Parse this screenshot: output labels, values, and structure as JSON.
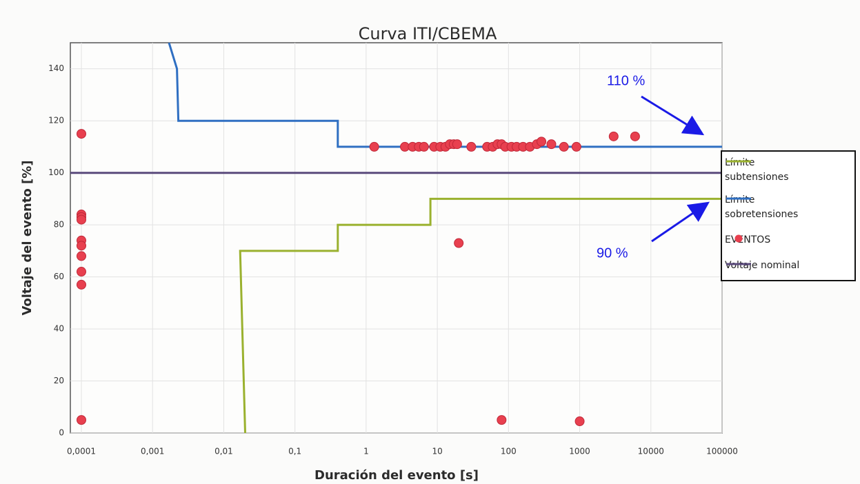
{
  "chart_data": {
    "type": "line",
    "title": "Curva ITI/CBEMA",
    "x_label": "Duración del evento  [s]",
    "y_label": "Voltaje del evento [%]",
    "x_scale": "log",
    "xlim": [
      7e-05,
      100000
    ],
    "ylim": [
      0,
      150
    ],
    "xticks": [
      {
        "value": 0.0001,
        "label": "0,0001"
      },
      {
        "value": 0.001,
        "label": "0,001"
      },
      {
        "value": 0.01,
        "label": "0,01"
      },
      {
        "value": 0.1,
        "label": "0,1"
      },
      1,
      10,
      100,
      1000,
      10000,
      100000
    ],
    "yticks": [
      0,
      20,
      40,
      60,
      80,
      100,
      120,
      140
    ],
    "grid": true,
    "legend": "right",
    "annotations": [
      "110 %",
      "90 %"
    ],
    "series": [
      {
        "name": "Límite subtensiones",
        "type": "line",
        "color": "#9ab12e",
        "x": [
          0.02,
          0.017,
          0.4,
          0.4,
          8,
          8,
          100000
        ],
        "values": [
          0,
          70,
          70,
          80,
          80,
          90,
          90
        ]
      },
      {
        "name": "Límite sobretensiones",
        "type": "line",
        "color": "#2f6fc2",
        "x": [
          0.0017,
          0.0022,
          0.0023,
          0.4,
          0.4,
          100000
        ],
        "values": [
          150,
          140,
          120,
          120,
          110,
          110
        ]
      },
      {
        "name": "EVENTOS",
        "type": "scatter",
        "color": "#e8404f",
        "x": [
          0.0001,
          0.0001,
          0.0001,
          0.0001,
          0.0001,
          0.0001,
          0.0001,
          0.0001,
          0.0001,
          0.0001,
          1.3,
          3.5,
          4.5,
          5.5,
          6.5,
          9,
          11,
          13,
          15,
          17,
          19,
          30,
          50,
          60,
          70,
          80,
          90,
          110,
          130,
          160,
          200,
          250,
          290,
          400,
          600,
          900,
          3000,
          6000,
          20,
          80,
          1000
        ],
        "values": [
          115,
          84,
          83,
          82,
          74,
          72,
          68,
          62,
          57,
          5,
          110,
          110,
          110,
          110,
          110,
          110,
          110,
          110,
          111,
          111,
          111,
          110,
          110,
          110,
          111,
          111,
          110,
          110,
          110,
          110,
          110,
          111,
          112,
          111,
          110,
          110,
          114,
          114,
          73,
          5,
          4.5
        ]
      },
      {
        "name": "Voltaje nominal",
        "type": "line",
        "color": "#5a4a7c",
        "x": [
          7e-05,
          100000
        ],
        "values": [
          100,
          100
        ]
      }
    ]
  }
}
